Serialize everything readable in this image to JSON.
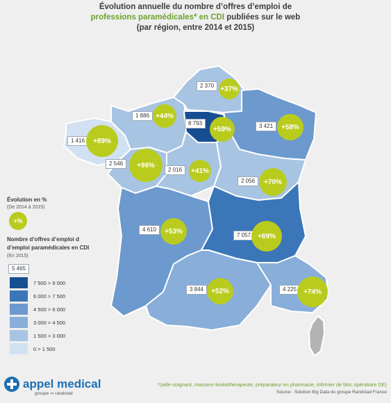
{
  "title": {
    "line1": "Évolution annuelle du nombre d’offres d’emploi de",
    "line2_highlight": "professions paramédicales* en CDI",
    "line2_rest": " publiées sur le web",
    "line3": "(par région, entre 2014 et 2015)"
  },
  "colors": {
    "highlight": "#6ea12e",
    "bubble": "#b9cc1e",
    "scale": [
      "#d2e1f2",
      "#a8c4e3",
      "#88aed9",
      "#6c99ce",
      "#3b76b8",
      "#164e92"
    ],
    "corsica": "#b3b3b3"
  },
  "regions": [
    {
      "name": "Île-de-France",
      "offers": "8 793",
      "change": "+59%"
    },
    {
      "name": "Nord-Pas-de-Calais-Picardie",
      "offers": "2 370",
      "change": "+37%"
    },
    {
      "name": "Normandie",
      "offers": "1 886",
      "change": "+44%"
    },
    {
      "name": "Alsace-Champagne-Ardenne-Lorraine",
      "offers": "3 421",
      "change": "+58%"
    },
    {
      "name": "Bretagne",
      "offers": "1 416",
      "change": "+89%"
    },
    {
      "name": "Pays de la Loire",
      "offers": "2 546",
      "change": "+96%"
    },
    {
      "name": "Centre-Val de Loire",
      "offers": "2 016",
      "change": "+41%"
    },
    {
      "name": "Bourgogne-Franche-Comté",
      "offers": "2 056",
      "change": "+70%"
    },
    {
      "name": "Aquitaine-Limousin-Poitou-Charentes",
      "offers": "4 610",
      "change": "+53%"
    },
    {
      "name": "Auvergne-Rhône-Alpes",
      "offers": "7 057",
      "change": "+69%"
    },
    {
      "name": "Languedoc-Roussillon-Midi-Pyrénées",
      "offers": "3 844",
      "change": "+52%"
    },
    {
      "name": "Provence-Alpes-Côte d'Azur",
      "offers": "4 225",
      "change": "+74%"
    }
  ],
  "legend": {
    "evolution_title": "Évolution en %",
    "evolution_sub": "(De 2014 à 2015)",
    "evolution_sample": "+%",
    "offers_title_1": "Nombre d’offres d’emploi d",
    "offers_title_2": "d’emploi paramédicales en CDI",
    "offers_sub": "(En 2015)",
    "sample_value": "5 465",
    "ranges": [
      "7 500 > 9 000",
      "6 000 > 7 500",
      "4 500 > 6 000",
      "3 000 > 4 500",
      "1 500 > 3 000",
      "0 > 1 500"
    ]
  },
  "logo": {
    "name": "appel medical",
    "sub": "groupe ↣ randstad"
  },
  "footnote": "*(aide-soignant, masseur-kinésithérapeute, préparateur en pharmacie, infirmier de bloc opératoire DE)",
  "source": "Source : Solution Big Data du groupe Randstad France"
}
